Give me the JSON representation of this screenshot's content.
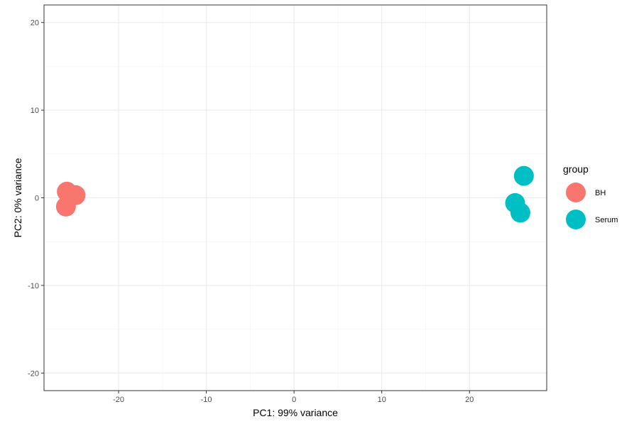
{
  "chart_data": {
    "type": "scatter",
    "title": "",
    "xlabel": "PC1: 99% variance",
    "ylabel": "PC2: 0% variance",
    "xlim": [
      -28.5,
      28.8
    ],
    "ylim": [
      -22.0,
      22.0
    ],
    "xticks": [
      -20,
      -10,
      0,
      10,
      20
    ],
    "yticks": [
      -20,
      -10,
      0,
      10,
      20
    ],
    "grid": true,
    "legend": {
      "title": "group",
      "placement": "right"
    },
    "series": [
      {
        "name": "BH",
        "color": "#F8766D",
        "points": [
          {
            "x": -25.9,
            "y": 0.7
          },
          {
            "x": -24.9,
            "y": 0.3
          },
          {
            "x": -26.0,
            "y": -1.0
          }
        ]
      },
      {
        "name": "Serum",
        "color": "#00BFC4",
        "points": [
          {
            "x": 26.2,
            "y": 2.5
          },
          {
            "x": 25.2,
            "y": -0.6
          },
          {
            "x": 25.8,
            "y": -1.7
          }
        ]
      }
    ]
  }
}
